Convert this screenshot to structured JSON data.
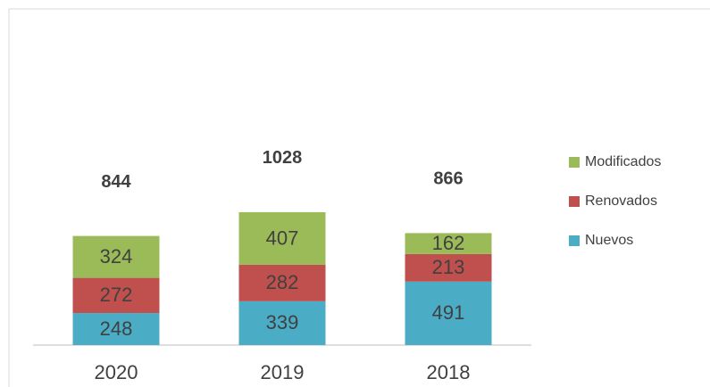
{
  "chart_data": {
    "type": "bar",
    "stacked": true,
    "categories": [
      "2020",
      "2019",
      "2018"
    ],
    "series": [
      {
        "name": "Nuevos",
        "color": "#4bacc6",
        "values": [
          248,
          339,
          491
        ]
      },
      {
        "name": "Renovados",
        "color": "#c0504d",
        "values": [
          272,
          282,
          213
        ]
      },
      {
        "name": "Modificados",
        "color": "#9bbb59",
        "values": [
          324,
          407,
          162
        ]
      }
    ],
    "totals": [
      844,
      1028,
      866
    ],
    "ylim": [
      0,
      2600
    ],
    "legend": "right"
  }
}
